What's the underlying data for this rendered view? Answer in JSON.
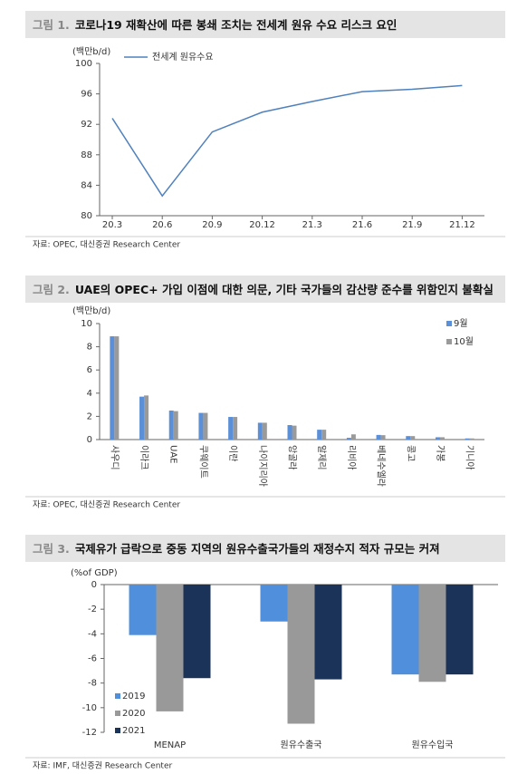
{
  "chart_data": [
    {
      "type": "line",
      "figure_label": "그림 1.",
      "title": "코로나19 재확산에 따른 봉쇄 조치는 전세계 원유 수요 리스크 요인",
      "y_label": "(백만b/d)",
      "source": "자료: OPEC, 대신증권 Research Center",
      "categories": [
        "20.3",
        "20.6",
        "20.9",
        "20.12",
        "21.3",
        "21.6",
        "21.9",
        "21.12"
      ],
      "series": [
        {
          "name": "전세계 원유수요",
          "color": "#4f81bd",
          "values": [
            92.8,
            82.6,
            91.0,
            93.6,
            95.0,
            96.3,
            96.6,
            97.1
          ]
        }
      ],
      "ylim": [
        80,
        100
      ],
      "yticks": [
        80,
        84,
        88,
        92,
        96,
        100
      ],
      "legend": "top-left"
    },
    {
      "type": "bar",
      "figure_label": "그림 2.",
      "title": "UAE의 OPEC+ 가입 이점에 대한 의문, 기타 국가들의 감산량 준수를 위함인지 불확실",
      "y_label": "(백만b/d)",
      "source": "자료: OPEC, 대신증권 Research Center",
      "categories": [
        "사우디",
        "이라크",
        "UAE",
        "쿠웨이트",
        "이란",
        "나이지리아",
        "앙골라",
        "알제리",
        "리비아",
        "베네수엘라",
        "콩고",
        "가봉",
        "기니아"
      ],
      "series": [
        {
          "name": "9월",
          "color": "#5b8fd8",
          "values": [
            8.9,
            3.7,
            2.5,
            2.3,
            1.95,
            1.45,
            1.25,
            0.85,
            0.15,
            0.4,
            0.3,
            0.2,
            0.1
          ]
        },
        {
          "name": "10월",
          "color": "#9a9a9a",
          "values": [
            8.9,
            3.8,
            2.45,
            2.3,
            1.95,
            1.45,
            1.2,
            0.85,
            0.45,
            0.38,
            0.3,
            0.2,
            0.1
          ]
        }
      ],
      "ylim": [
        0,
        10
      ],
      "yticks": [
        0,
        2,
        4,
        6,
        8,
        10
      ],
      "legend": "top-right"
    },
    {
      "type": "bar",
      "figure_label": "그림 3.",
      "title": "국제유가 급락으로 중동 지역의 원유수출국가들의 재정수지 적자 규모는 커져",
      "y_label": "(%of GDP)",
      "source": "자료: IMF, 대신증권 Research Center",
      "categories": [
        "MENAP",
        "원유수출국",
        "원유수입국"
      ],
      "series": [
        {
          "name": "2019",
          "color": "#4f8fdb",
          "values": [
            -4.1,
            -3.0,
            -7.3
          ]
        },
        {
          "name": "2020",
          "color": "#999999",
          "values": [
            -10.3,
            -11.3,
            -7.9
          ]
        },
        {
          "name": "2021",
          "color": "#1b3358",
          "values": [
            -7.6,
            -7.7,
            -7.3
          ]
        }
      ],
      "ylim": [
        -12,
        0
      ],
      "yticks": [
        -12,
        -10,
        -8,
        -6,
        -4,
        -2,
        0
      ],
      "legend": "bottom-left"
    }
  ]
}
